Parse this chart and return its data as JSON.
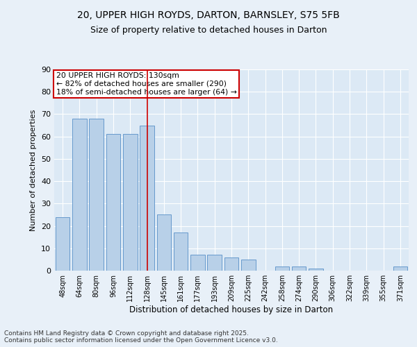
{
  "title_line1": "20, UPPER HIGH ROYDS, DARTON, BARNSLEY, S75 5FB",
  "title_line2": "Size of property relative to detached houses in Darton",
  "xlabel": "Distribution of detached houses by size in Darton",
  "ylabel": "Number of detached properties",
  "categories": [
    "48sqm",
    "64sqm",
    "80sqm",
    "96sqm",
    "112sqm",
    "128sqm",
    "145sqm",
    "161sqm",
    "177sqm",
    "193sqm",
    "209sqm",
    "225sqm",
    "242sqm",
    "258sqm",
    "274sqm",
    "290sqm",
    "306sqm",
    "322sqm",
    "339sqm",
    "355sqm",
    "371sqm"
  ],
  "values": [
    24,
    68,
    68,
    61,
    61,
    65,
    25,
    17,
    7,
    7,
    6,
    5,
    0,
    2,
    2,
    1,
    0,
    0,
    0,
    0,
    2
  ],
  "bar_color": "#b8d0e8",
  "bar_edge_color": "#6699cc",
  "vline_index": 5,
  "vline_color": "#cc0000",
  "annotation_line1": "20 UPPER HIGH ROYDS: 130sqm",
  "annotation_line2": "← 82% of detached houses are smaller (290)",
  "annotation_line3": "18% of semi-detached houses are larger (64) →",
  "annotation_box_color": "#ffffff",
  "annotation_box_edge": "#cc0000",
  "ylim": [
    0,
    90
  ],
  "yticks": [
    0,
    10,
    20,
    30,
    40,
    50,
    60,
    70,
    80,
    90
  ],
  "plot_bg_color": "#dce9f5",
  "fig_bg_color": "#e8f0f8",
  "footnote_line1": "Contains HM Land Registry data © Crown copyright and database right 2025.",
  "footnote_line2": "Contains public sector information licensed under the Open Government Licence v3.0."
}
